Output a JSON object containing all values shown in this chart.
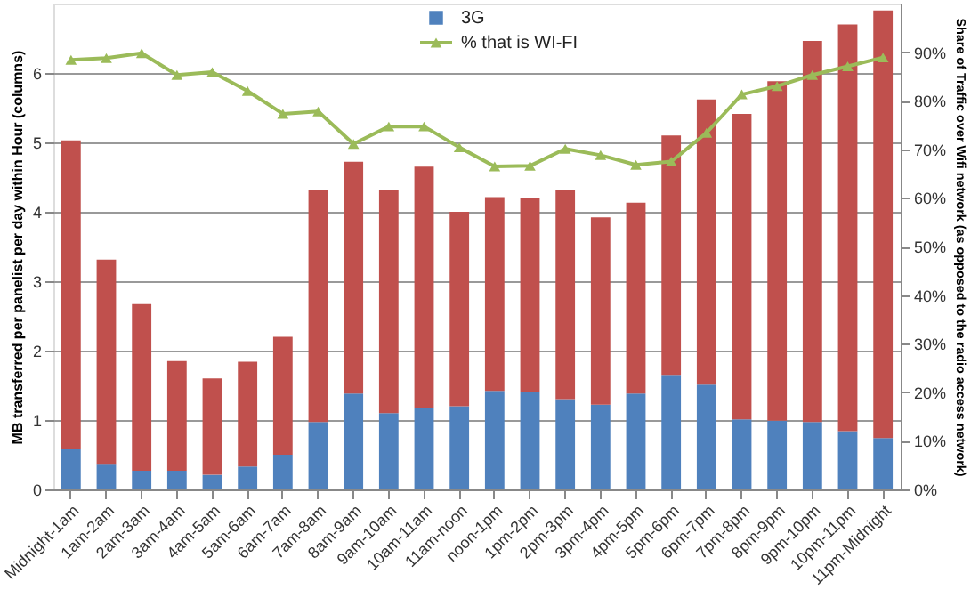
{
  "chart_data": {
    "type": "bar",
    "stacked": true,
    "ylabel": "MB transferred per panelist per day within Hour (columns)",
    "y2label": "Share of Traffic over Wifi network (as opposed to the radio access network)",
    "categories": [
      "Midnight-1am",
      "1am-2am",
      "2am-3am",
      "3am-4am",
      "4am-5am",
      "5am-6am",
      "6am-7am",
      "7am-8am",
      "8am-9am",
      "9am-10am",
      "10am-11am",
      "11am-noon",
      "noon-1pm",
      "1pm-2pm",
      "2pm-3pm",
      "3pm-4pm",
      "4pm-5pm",
      "5pm-6pm",
      "6pm-7pm",
      "7pm-8pm",
      "8pm-9pm",
      "9pm-10pm",
      "10pm-11pm",
      "11pm-Midnight"
    ],
    "series": [
      {
        "name": "3G",
        "color": "#4f81bd",
        "values": [
          0.58,
          0.37,
          0.27,
          0.27,
          0.21,
          0.33,
          0.5,
          0.97,
          1.38,
          1.1,
          1.17,
          1.2,
          1.42,
          1.41,
          1.3,
          1.22,
          1.38,
          1.65,
          1.51,
          1.01,
          0.99,
          0.97,
          0.84,
          0.74
        ]
      },
      {
        "color": "#c0504d",
        "values": [
          4.45,
          2.94,
          2.4,
          1.58,
          1.39,
          1.51,
          1.7,
          3.35,
          3.34,
          3.22,
          3.48,
          2.8,
          2.79,
          2.79,
          3.01,
          2.7,
          2.75,
          3.45,
          4.11,
          4.4,
          4.89,
          5.49,
          5.86,
          6.16
        ]
      },
      {
        "name": "% that is WI-FI",
        "type": "line",
        "axis": "y2",
        "color": "#9bbb59",
        "marker": "triangle",
        "values": [
          88.4,
          88.8,
          89.8,
          85.3,
          85.9,
          82.0,
          77.3,
          77.8,
          71.1,
          74.7,
          74.7,
          70.4,
          66.5,
          66.6,
          70.1,
          68.8,
          66.8,
          67.5,
          73.4,
          81.3,
          83.0,
          85.3,
          87.1,
          88.9
        ]
      }
    ],
    "ylim": [
      0,
      7
    ],
    "yticks": [
      0,
      1,
      2,
      3,
      4,
      5,
      6
    ],
    "y2lim": [
      0,
      100
    ],
    "y2ticks": [
      {
        "value": 0,
        "label": "0%"
      },
      {
        "value": 10,
        "label": "10%"
      },
      {
        "value": 20,
        "label": "20%"
      },
      {
        "value": 30,
        "label": "30%"
      },
      {
        "value": 40,
        "label": "40%"
      },
      {
        "value": 50,
        "label": "50%"
      },
      {
        "value": 60,
        "label": "60%"
      },
      {
        "value": 70,
        "label": "70%"
      },
      {
        "value": 80,
        "label": "80%"
      },
      {
        "value": 90,
        "label": "90%"
      }
    ],
    "grid": "y",
    "legend": "top"
  }
}
